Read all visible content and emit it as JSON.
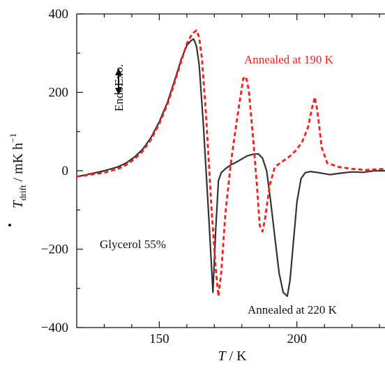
{
  "chart_data": {
    "type": "line",
    "title": "",
    "xlabel": "T / K",
    "ylabel": "Tdrift / mK h−1",
    "xlim": [
      120,
      232
    ],
    "ylim": [
      -400,
      400
    ],
    "x_ticks": [
      150,
      200
    ],
    "y_ticks": [
      -400,
      -200,
      0,
      200,
      400
    ],
    "grid": false,
    "legend": "none",
    "annotations": {
      "annealed_190": "Annealed at 190 K",
      "annealed_220": "Annealed at 220 K",
      "sample": "Glycerol 55%",
      "endo": "Endo.",
      "exo": "Exo."
    },
    "series": [
      {
        "color": "#333333",
        "style": "solid",
        "x": [
          120,
          125,
          130,
          135,
          138,
          141,
          144,
          147,
          150,
          153,
          156,
          158,
          160,
          161.5,
          162.5,
          163.5,
          164.5,
          166,
          168,
          169.5,
          170.5,
          171.5,
          172.5,
          174,
          176,
          178,
          180,
          182,
          184,
          186,
          187.5,
          189,
          190.5,
          192,
          193.5,
          195,
          196.5,
          197.5,
          198.5,
          200,
          201.5,
          203,
          205,
          208,
          212,
          216,
          220,
          224,
          228,
          232
        ],
        "y": [
          -15,
          -8,
          0,
          10,
          20,
          35,
          55,
          85,
          125,
          175,
          240,
          285,
          320,
          332,
          336,
          318,
          270,
          120,
          -120,
          -310,
          -150,
          -25,
          -5,
          5,
          15,
          22,
          30,
          38,
          42,
          43,
          32,
          0,
          -80,
          -170,
          -260,
          -310,
          -320,
          -280,
          -200,
          -80,
          -20,
          -5,
          -2,
          -5,
          -10,
          -6,
          -3,
          -4,
          0,
          0
        ]
      },
      {
        "color": "#ff1a1a",
        "style": "dashed",
        "x": [
          120,
          125,
          130,
          135,
          138,
          141,
          144,
          147,
          150,
          153,
          156,
          158,
          160,
          162,
          163.5,
          164.5,
          165.5,
          167,
          169,
          170.5,
          171.5,
          172.5,
          174,
          176,
          178,
          179.5,
          180.5,
          181.5,
          182.5,
          184,
          185.5,
          186.5,
          187.5,
          188.5,
          190,
          192,
          194,
          196,
          198,
          200,
          202,
          204,
          205.5,
          206.5,
          207.5,
          209,
          211,
          215,
          220,
          225,
          232
        ],
        "y": [
          -15,
          -10,
          -5,
          5,
          15,
          30,
          50,
          80,
          120,
          170,
          235,
          280,
          325,
          350,
          358,
          340,
          285,
          140,
          -100,
          -250,
          -320,
          -260,
          -110,
          20,
          120,
          190,
          235,
          240,
          205,
          90,
          -40,
          -140,
          -155,
          -120,
          -40,
          10,
          20,
          30,
          40,
          55,
          75,
          110,
          160,
          188,
          150,
          60,
          20,
          10,
          5,
          2,
          5
        ]
      }
    ]
  }
}
